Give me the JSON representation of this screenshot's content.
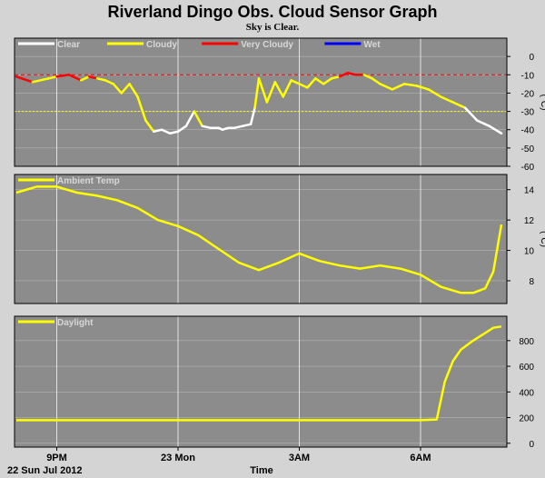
{
  "colors": {
    "page_bg": "#d4d4d4",
    "plot_bg": "#8c8c8c",
    "grid": "#ffffff",
    "frame": "#000000",
    "clear": "#ffffff",
    "cloudy": "#ffff00",
    "very_cloudy": "#ff0000",
    "wet": "#0000ff",
    "ambient": "#ffff00",
    "daylight": "#ffff00",
    "threshold_red": "#ff0000",
    "threshold_yellow": "#ffff00"
  },
  "header": {
    "title": "Riverland Dingo Obs. Cloud Sensor Graph",
    "subtitle": "Sky is Clear."
  },
  "footer": {
    "date_label": "22 Sun Jul 2012",
    "x_axis_title": "Time"
  },
  "x_axis": {
    "ticks": [
      "9PM",
      "23 Mon",
      "3AM",
      "6AM"
    ]
  },
  "chart_data": [
    {
      "type": "line",
      "ylabel": "(°C)",
      "ylim": [
        -60,
        10
      ],
      "yticks": [
        0,
        -10,
        -20,
        -30,
        -40,
        -50,
        -60
      ],
      "grid": true,
      "thresholds": [
        {
          "value": -10,
          "style": "dashed",
          "color_key": "threshold_red"
        },
        {
          "value": -30,
          "style": "dotted",
          "color_key": "threshold_yellow"
        }
      ],
      "legend": [
        {
          "label": "Clear",
          "color_key": "clear"
        },
        {
          "label": "Cloudy",
          "color_key": "cloudy"
        },
        {
          "label": "Very Cloudy",
          "color_key": "very_cloudy"
        },
        {
          "label": "Wet",
          "color_key": "wet"
        }
      ],
      "x_hours": [
        0,
        0.4,
        0.8,
        1.0,
        1.3,
        1.6,
        1.8,
        2.0,
        2.2,
        2.4,
        2.6,
        2.8,
        3.0,
        3.2,
        3.4,
        3.6,
        3.8,
        4.0,
        4.2,
        4.4,
        4.6,
        4.8,
        5.0,
        5.1,
        5.25,
        5.4,
        5.6,
        5.8,
        5.9,
        6.0,
        6.2,
        6.4,
        6.6,
        6.8,
        7.0,
        7.2,
        7.4,
        7.6,
        7.8,
        8.0,
        8.2,
        8.4,
        8.6,
        8.8,
        9.0,
        9.3,
        9.6,
        9.9,
        10.2,
        10.5,
        10.8,
        11.1,
        11.4,
        11.7,
        12.0
      ],
      "values": [
        -11,
        -14,
        -12,
        -11,
        -10,
        -13,
        -11,
        -12,
        -13,
        -15,
        -20,
        -15,
        -22,
        -35,
        -41,
        -40,
        -42,
        -41,
        -38,
        -30,
        -38,
        -39,
        -39,
        -40,
        -39,
        -39,
        -38,
        -37,
        -28,
        -12,
        -25,
        -14,
        -22,
        -13,
        -15,
        -17,
        -12,
        -15,
        -12,
        -11,
        -9,
        -10,
        -10,
        -12,
        -15,
        -18,
        -15,
        -16,
        -18,
        -22,
        -25,
        -28,
        -35,
        -38,
        -42
      ],
      "states": [
        "very_cloudy",
        "cloudy",
        "cloudy",
        "very_cloudy",
        "very_cloudy",
        "cloudy",
        "very_cloudy",
        "cloudy",
        "cloudy",
        "cloudy",
        "cloudy",
        "cloudy",
        "cloudy",
        "cloudy",
        "clear",
        "clear",
        "clear",
        "clear",
        "clear",
        "cloudy",
        "clear",
        "clear",
        "clear",
        "clear",
        "clear",
        "clear",
        "clear",
        "clear",
        "cloudy",
        "cloudy",
        "cloudy",
        "cloudy",
        "cloudy",
        "cloudy",
        "cloudy",
        "cloudy",
        "cloudy",
        "cloudy",
        "cloudy",
        "very_cloudy",
        "very_cloudy",
        "very_cloudy",
        "cloudy",
        "cloudy",
        "cloudy",
        "cloudy",
        "cloudy",
        "cloudy",
        "cloudy",
        "cloudy",
        "cloudy",
        "clear",
        "clear",
        "clear",
        "clear"
      ]
    },
    {
      "type": "line",
      "ylabel": "(°C)",
      "ylim": [
        6.5,
        15
      ],
      "yticks": [
        8,
        10,
        12,
        14
      ],
      "grid": true,
      "legend": [
        {
          "label": "Ambient Temp",
          "color_key": "ambient"
        }
      ],
      "x_hours": [
        0,
        0.5,
        1.0,
        1.5,
        2.0,
        2.5,
        3.0,
        3.5,
        4.0,
        4.5,
        5.0,
        5.5,
        6.0,
        6.5,
        7.0,
        7.5,
        8.0,
        8.5,
        9.0,
        9.5,
        10.0,
        10.5,
        11.0,
        11.3,
        11.6,
        11.8,
        12.0
      ],
      "values": [
        13.8,
        14.2,
        14.2,
        13.8,
        13.6,
        13.3,
        12.8,
        12.0,
        11.6,
        11.0,
        10.1,
        9.2,
        8.7,
        9.2,
        9.8,
        9.3,
        9.0,
        8.8,
        9.0,
        8.8,
        8.4,
        7.6,
        7.2,
        7.2,
        7.5,
        8.6,
        11.7
      ]
    },
    {
      "type": "line",
      "ylim": [
        -30,
        990
      ],
      "yticks": [
        0,
        200,
        400,
        600,
        800
      ],
      "grid": true,
      "legend": [
        {
          "label": "Daylight",
          "color_key": "daylight"
        }
      ],
      "x_hours": [
        0,
        2.0,
        4.0,
        6.0,
        8.0,
        10.0,
        10.4,
        10.6,
        10.8,
        11.0,
        11.3,
        11.6,
        11.8,
        12.0
      ],
      "values": [
        180,
        180,
        180,
        180,
        180,
        180,
        185,
        480,
        640,
        730,
        800,
        860,
        900,
        910
      ]
    }
  ]
}
